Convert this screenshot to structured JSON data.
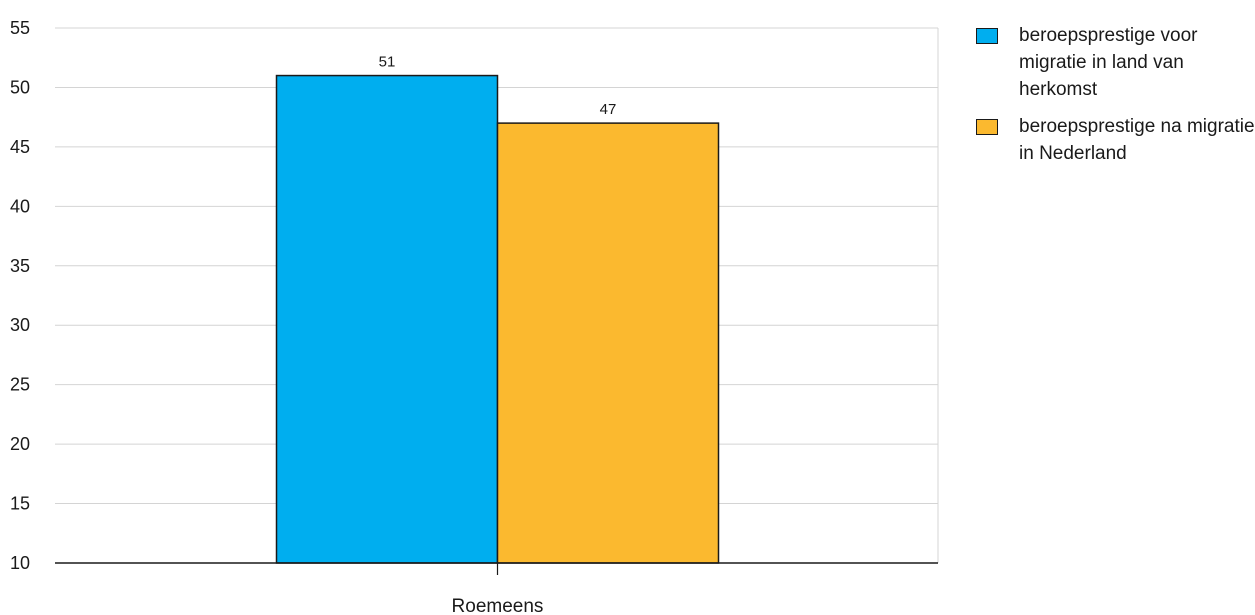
{
  "chart_data": {
    "type": "bar",
    "categories": [
      "Roemeens"
    ],
    "series": [
      {
        "name": "beroepsprestige voor migratie in land van herkomst",
        "values": [
          51
        ],
        "color": "#00aeef"
      },
      {
        "name": "beroepsprestige na migratie in Nederland",
        "values": [
          47
        ],
        "color": "#fbb92f"
      }
    ],
    "data_labels": [
      "51",
      "47"
    ],
    "ylim": [
      10,
      55
    ],
    "yticks": [
      10,
      15,
      20,
      25,
      30,
      35,
      40,
      45,
      50,
      55
    ],
    "title": "",
    "xlabel": "",
    "ylabel": "",
    "grid": true,
    "legend_position": "right"
  }
}
